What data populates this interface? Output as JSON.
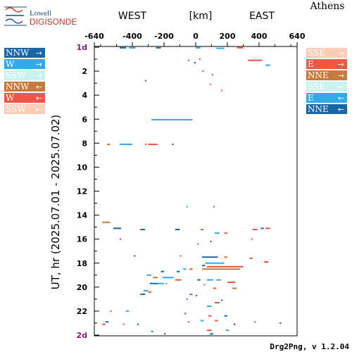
{
  "logo": {
    "line1": "Lowell",
    "line2": "DIGISONDE"
  },
  "station": "Athens",
  "header": {
    "west": "WEST",
    "units": "[km]",
    "east": "EAST"
  },
  "footer": "Drg2Png, v 1.2.04",
  "colors": {
    "NNW_dark": "#1a64a8",
    "W_red": "#f05545",
    "SSW_cyan": "#c8f2f0",
    "NNW_brown": "#c67a3c",
    "SSE_peach": "#f9cdb6",
    "E_blue": "#34a9e8"
  },
  "legend": {
    "left": [
      {
        "label": "NNW",
        "arrow": "→",
        "color": "#1a64a8"
      },
      {
        "label": "W",
        "arrow": "→",
        "color": "#34a9e8"
      },
      {
        "label": "SSW",
        "arrow": "→",
        "color": "#c8f2f0"
      },
      {
        "label": "NNW",
        "arrow": "←",
        "color": "#c67a3c"
      },
      {
        "label": "W",
        "arrow": "←",
        "color": "#f05545"
      },
      {
        "label": "SSW",
        "arrow": "←",
        "color": "#f9cdb6"
      }
    ],
    "right": [
      {
        "label": "SSE",
        "arrow": "→",
        "color": "#f9cdb6"
      },
      {
        "label": "E",
        "arrow": "→",
        "color": "#f05545"
      },
      {
        "label": "NNE",
        "arrow": "→",
        "color": "#c67a3c"
      },
      {
        "label": "SSE",
        "arrow": "←",
        "color": "#c8f2f0"
      },
      {
        "label": "E",
        "arrow": "←",
        "color": "#34a9e8"
      },
      {
        "label": "NNE",
        "arrow": "←",
        "color": "#1a64a8"
      }
    ]
  },
  "chart_data": {
    "type": "scatter",
    "ylabel": "UT, hr (2025.07.01 - 2025.07.02)",
    "xlim": [
      -640,
      640
    ],
    "ylim": [
      0,
      24
    ],
    "x_ticks": [
      "-640",
      "-400",
      "-200",
      "0",
      "200",
      "400",
      "640"
    ],
    "x_tick_values": [
      -640,
      -400,
      -200,
      0,
      200,
      400,
      640
    ],
    "y_ticks": [
      "1d",
      "2",
      "4",
      "6",
      "8",
      "10",
      "12",
      "14",
      "16",
      "18",
      "20",
      "22",
      "2d"
    ],
    "y_tick_values": [
      0,
      2,
      4,
      6,
      8,
      10,
      12,
      14,
      16,
      18,
      20,
      22,
      24
    ],
    "segments": [
      {
        "x1": -480,
        "x2": -440,
        "y": 0.05,
        "color": "#1a64a8"
      },
      {
        "x1": -420,
        "x2": -380,
        "y": 0.05,
        "color": "#34a9e8"
      },
      {
        "x1": -250,
        "x2": -220,
        "y": 0.05,
        "color": "#1a64a8"
      },
      {
        "x1": 0,
        "x2": 30,
        "y": 0.05,
        "color": "#34a9e8"
      },
      {
        "x1": 130,
        "x2": 180,
        "y": 0.1,
        "color": "#34a9e8"
      },
      {
        "x1": 260,
        "x2": 300,
        "y": 0.05,
        "color": "#f05545"
      },
      {
        "x1": 330,
        "x2": 420,
        "y": 1.1,
        "color": "#f05545"
      },
      {
        "x1": 440,
        "x2": 470,
        "y": 1.5,
        "color": "#34a9e8"
      },
      {
        "x1": -50,
        "x2": -40,
        "y": 1.1,
        "color": "#f05545"
      },
      {
        "x1": 20,
        "x2": 30,
        "y": 1.0,
        "color": "#f05545"
      },
      {
        "x1": -10,
        "x2": 0,
        "y": 1.3,
        "color": "#1a64a8"
      },
      {
        "x1": 40,
        "x2": 50,
        "y": 2.0,
        "color": "#f05545"
      },
      {
        "x1": 100,
        "x2": 110,
        "y": 2.3,
        "color": "#f05545"
      },
      {
        "x1": -320,
        "x2": -315,
        "y": 2.8,
        "color": "#1a64a8"
      },
      {
        "x1": 90,
        "x2": 95,
        "y": 3.1,
        "color": "#f05545"
      },
      {
        "x1": 160,
        "x2": 165,
        "y": 3.6,
        "color": "#f05545"
      },
      {
        "x1": -280,
        "x2": -20,
        "y": 6.05,
        "color": "#34a9e8"
      },
      {
        "x1": -560,
        "x2": -540,
        "y": 8.1,
        "color": "#c67a3c"
      },
      {
        "x1": -480,
        "x2": -400,
        "y": 8.1,
        "color": "#34a9e8"
      },
      {
        "x1": -320,
        "x2": -310,
        "y": 8.1,
        "color": "#f05545"
      },
      {
        "x1": -300,
        "x2": -240,
        "y": 8.1,
        "color": "#f05545"
      },
      {
        "x1": -150,
        "x2": -140,
        "y": 8.1,
        "color": "#1a64a8"
      },
      {
        "x1": -60,
        "x2": -50,
        "y": 13.3,
        "color": "#34a9e8"
      },
      {
        "x1": 110,
        "x2": 120,
        "y": 13.3,
        "color": "#f05545"
      },
      {
        "x1": -590,
        "x2": -540,
        "y": 14.6,
        "color": "#c67a3c"
      },
      {
        "x1": -520,
        "x2": -470,
        "y": 15.1,
        "color": "#1a64a8"
      },
      {
        "x1": -350,
        "x2": -320,
        "y": 15.2,
        "color": "#1a64a8"
      },
      {
        "x1": -130,
        "x2": -100,
        "y": 15.2,
        "color": "#1a64a8"
      },
      {
        "x1": 120,
        "x2": 150,
        "y": 15.5,
        "color": "#34a9e8"
      },
      {
        "x1": 180,
        "x2": 200,
        "y": 15.5,
        "color": "#f05545"
      },
      {
        "x1": 30,
        "x2": 50,
        "y": 15.2,
        "color": "#c67a3c"
      },
      {
        "x1": 360,
        "x2": 390,
        "y": 15.2,
        "color": "#f05545"
      },
      {
        "x1": 410,
        "x2": 430,
        "y": 15.1,
        "color": "#1a64a8"
      },
      {
        "x1": 440,
        "x2": 470,
        "y": 15.1,
        "color": "#f05545"
      },
      {
        "x1": -480,
        "x2": -470,
        "y": 16.0,
        "color": "#f05545"
      },
      {
        "x1": 350,
        "x2": 360,
        "y": 16.0,
        "color": "#f05545"
      },
      {
        "x1": 10,
        "x2": 20,
        "y": 16.4,
        "color": "#f05545"
      },
      {
        "x1": 90,
        "x2": 100,
        "y": 16.2,
        "color": "#1a64a8"
      },
      {
        "x1": -100,
        "x2": -90,
        "y": 17.4,
        "color": "#f05545"
      },
      {
        "x1": -390,
        "x2": -380,
        "y": 17.4,
        "color": "#1a64a8"
      },
      {
        "x1": 40,
        "x2": 140,
        "y": 17.5,
        "color": "#1a64a8"
      },
      {
        "x1": 180,
        "x2": 200,
        "y": 17.5,
        "color": "#c67a3c"
      },
      {
        "x1": 340,
        "x2": 360,
        "y": 17.6,
        "color": "#c67a3c"
      },
      {
        "x1": 430,
        "x2": 460,
        "y": 17.9,
        "color": "#f05545"
      },
      {
        "x1": 60,
        "x2": 180,
        "y": 18.0,
        "color": "#34a9e8"
      },
      {
        "x1": 40,
        "x2": 60,
        "y": 18.2,
        "color": "#1a64a8"
      },
      {
        "x1": 70,
        "x2": 300,
        "y": 18.3,
        "color": "#f05545"
      },
      {
        "x1": 40,
        "x2": 280,
        "y": 18.5,
        "color": "#c67a3c"
      },
      {
        "x1": -40,
        "x2": -20,
        "y": 18.5,
        "color": "#f05545"
      },
      {
        "x1": -80,
        "x2": -60,
        "y": 18.5,
        "color": "#34a9e8"
      },
      {
        "x1": -120,
        "x2": -100,
        "y": 18.7,
        "color": "#1a64a8"
      },
      {
        "x1": -220,
        "x2": -200,
        "y": 18.7,
        "color": "#1a64a8"
      },
      {
        "x1": -310,
        "x2": -280,
        "y": 19.0,
        "color": "#34a9e8"
      },
      {
        "x1": -270,
        "x2": -240,
        "y": 19.2,
        "color": "#c67a3c"
      },
      {
        "x1": -210,
        "x2": -140,
        "y": 19.2,
        "color": "#34a9e8"
      },
      {
        "x1": -130,
        "x2": -90,
        "y": 19.4,
        "color": "#f05545"
      },
      {
        "x1": -190,
        "x2": -180,
        "y": 19.7,
        "color": "#c67a3c"
      },
      {
        "x1": -290,
        "x2": -240,
        "y": 19.7,
        "color": "#1a64a8"
      },
      {
        "x1": -240,
        "x2": -200,
        "y": 19.7,
        "color": "#34a9e8"
      },
      {
        "x1": 10,
        "x2": 30,
        "y": 19.4,
        "color": "#1a64a8"
      },
      {
        "x1": 70,
        "x2": 110,
        "y": 19.4,
        "color": "#34a9e8"
      },
      {
        "x1": 130,
        "x2": 160,
        "y": 19.4,
        "color": "#34a9e8"
      },
      {
        "x1": 200,
        "x2": 250,
        "y": 19.6,
        "color": "#f05545"
      },
      {
        "x1": 50,
        "x2": 60,
        "y": 19.8,
        "color": "#f05545"
      },
      {
        "x1": 110,
        "x2": 130,
        "y": 20.1,
        "color": "#f05545"
      },
      {
        "x1": 230,
        "x2": 260,
        "y": 20.1,
        "color": "#c67a3c"
      },
      {
        "x1": -330,
        "x2": -300,
        "y": 20.3,
        "color": "#34a9e8"
      },
      {
        "x1": -300,
        "x2": -280,
        "y": 20.4,
        "color": "#f05545"
      },
      {
        "x1": -350,
        "x2": -320,
        "y": 20.6,
        "color": "#1a64a8"
      },
      {
        "x1": -40,
        "x2": -20,
        "y": 20.6,
        "color": "#f05545"
      },
      {
        "x1": 0,
        "x2": 10,
        "y": 20.7,
        "color": "#1a64a8"
      },
      {
        "x1": -60,
        "x2": -50,
        "y": 21.0,
        "color": "#f05545"
      },
      {
        "x1": 120,
        "x2": 150,
        "y": 21.3,
        "color": "#f05545"
      },
      {
        "x1": 160,
        "x2": 170,
        "y": 21.1,
        "color": "#1a64a8"
      },
      {
        "x1": 70,
        "x2": 100,
        "y": 21.6,
        "color": "#34a9e8"
      },
      {
        "x1": -540,
        "x2": -530,
        "y": 22.0,
        "color": "#f05545"
      },
      {
        "x1": -440,
        "x2": -420,
        "y": 22.0,
        "color": "#34a9e8"
      },
      {
        "x1": -70,
        "x2": -60,
        "y": 22.2,
        "color": "#1a64a8"
      },
      {
        "x1": 80,
        "x2": 100,
        "y": 22.4,
        "color": "#f05545"
      },
      {
        "x1": 180,
        "x2": 200,
        "y": 22.4,
        "color": "#1a64a8"
      },
      {
        "x1": -590,
        "x2": -570,
        "y": 23.1,
        "color": "#f05545"
      },
      {
        "x1": -570,
        "x2": -550,
        "y": 22.9,
        "color": "#1a64a8"
      },
      {
        "x1": -460,
        "x2": -450,
        "y": 23.1,
        "color": "#f05545"
      },
      {
        "x1": -370,
        "x2": -360,
        "y": 23.1,
        "color": "#1a64a8"
      },
      {
        "x1": -50,
        "x2": -40,
        "y": 22.9,
        "color": "#f05545"
      },
      {
        "x1": 30,
        "x2": 50,
        "y": 22.8,
        "color": "#34a9e8"
      },
      {
        "x1": 120,
        "x2": 140,
        "y": 22.8,
        "color": "#f05545"
      },
      {
        "x1": 240,
        "x2": 250,
        "y": 23.1,
        "color": "#1a64a8"
      },
      {
        "x1": 370,
        "x2": 380,
        "y": 22.9,
        "color": "#f05545"
      },
      {
        "x1": 530,
        "x2": 540,
        "y": 23.0,
        "color": "#1a64a8"
      },
      {
        "x1": -280,
        "x2": -270,
        "y": 23.7,
        "color": "#1a64a8"
      },
      {
        "x1": -200,
        "x2": -190,
        "y": 23.9,
        "color": "#1a64a8"
      },
      {
        "x1": 70,
        "x2": 100,
        "y": 23.6,
        "color": "#f05545"
      },
      {
        "x1": 90,
        "x2": 110,
        "y": 23.9,
        "color": "#1a64a8"
      },
      {
        "x1": 190,
        "x2": 210,
        "y": 23.6,
        "color": "#34a9e8"
      }
    ]
  }
}
